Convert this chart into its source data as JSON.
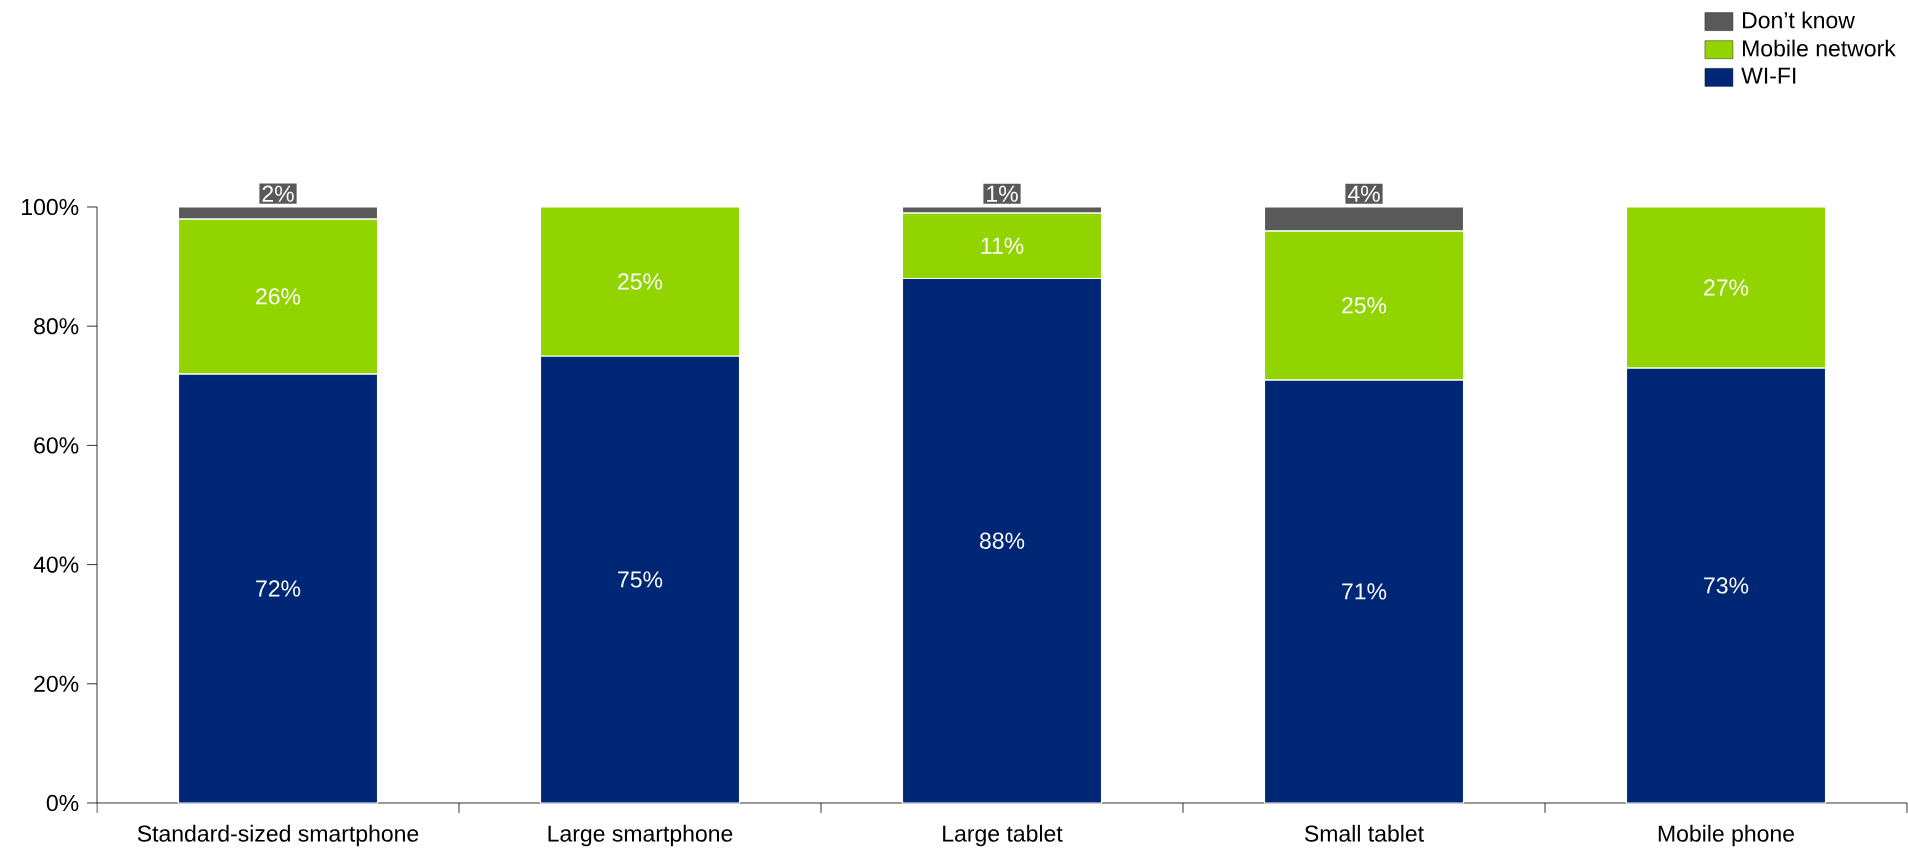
{
  "chart_data": {
    "type": "bar",
    "stacked": true,
    "categories": [
      "Standard-sized smartphone",
      "Large smartphone",
      "Large tablet",
      "Small tablet",
      "Mobile phone"
    ],
    "series": [
      {
        "name": "WI-FI",
        "color": "#002776",
        "values": [
          72,
          75,
          88,
          71,
          73
        ],
        "value_labels": [
          "72%",
          "75%",
          "88%",
          "71%",
          "73%"
        ]
      },
      {
        "name": "Mobile network",
        "color": "#92d400",
        "values": [
          26,
          25,
          11,
          25,
          27
        ],
        "value_labels": [
          "26%",
          "25%",
          "11%",
          "25%",
          "27%"
        ]
      },
      {
        "name": "Don’t know",
        "color": "#595959",
        "values": [
          2,
          null,
          1,
          4,
          null
        ],
        "value_labels": [
          "2%",
          null,
          "1%",
          "4%",
          null
        ]
      }
    ],
    "ylim": [
      0,
      100
    ],
    "yticks": [
      {
        "value": 0,
        "label": "0%"
      },
      {
        "value": 20,
        "label": "20%"
      },
      {
        "value": 40,
        "label": "40%"
      },
      {
        "value": 60,
        "label": "60%"
      },
      {
        "value": 80,
        "label": "80%"
      },
      {
        "value": 100,
        "label": "100%"
      }
    ],
    "legend": "top right",
    "grid": false
  }
}
